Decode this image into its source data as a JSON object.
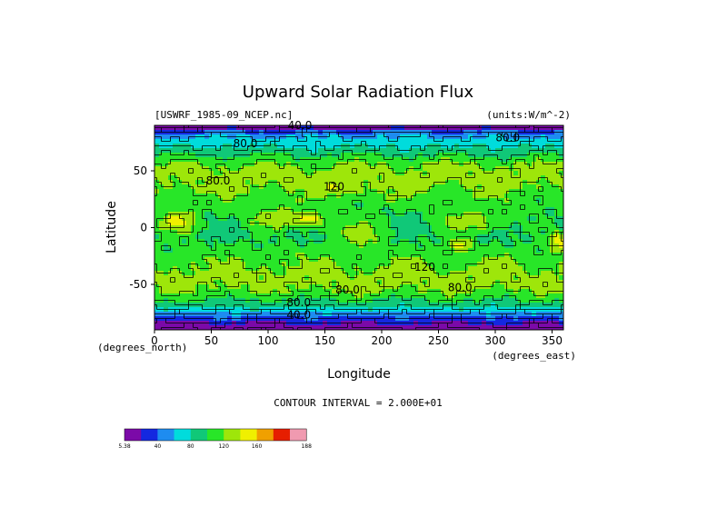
{
  "chart_data": {
    "type": "heatmap",
    "title": "Upward Solar Radiation Flux",
    "subtitle_left": "[USWRF_1985-09_NCEP.nc]",
    "subtitle_right": "(units:W/m^-2)",
    "xlabel": "Longitude",
    "ylabel": "Latitude",
    "x_unit_label": "(degrees_east)",
    "y_unit_label": "(degrees_north)",
    "xlim": [
      0,
      360
    ],
    "ylim": [
      -90,
      90
    ],
    "x_ticks": [
      0,
      50,
      100,
      150,
      200,
      250,
      300,
      350
    ],
    "y_ticks": [
      -50,
      0,
      50
    ],
    "contour_interval_text": "CONTOUR INTERVAL = 2.000E+01",
    "contour_labels": [
      {
        "text": "40.0",
        "lon": 128,
        "lat": 87
      },
      {
        "text": "80.0",
        "lon": 80,
        "lat": 71
      },
      {
        "text": "80.0",
        "lon": 311,
        "lat": 76
      },
      {
        "text": "80.0",
        "lon": 56,
        "lat": 38
      },
      {
        "text": "120",
        "lon": 158,
        "lat": 33
      },
      {
        "text": "120",
        "lon": 238,
        "lat": -38
      },
      {
        "text": "80.0",
        "lon": 170,
        "lat": -58
      },
      {
        "text": "80.0",
        "lon": 269,
        "lat": -56
      },
      {
        "text": "80.0",
        "lon": 127,
        "lat": -69
      },
      {
        "text": "40.0",
        "lon": 127,
        "lat": -80
      }
    ],
    "colorbar": {
      "levels": [
        "5.38",
        "40",
        "80",
        "120",
        "160",
        "188"
      ],
      "colors": [
        "#7b0aa8",
        "#1428e0",
        "#1e8cf0",
        "#00dcdc",
        "#10c878",
        "#28e628",
        "#9ee60a",
        "#f0f000",
        "#f0a000",
        "#e61e00",
        "#f09ab0"
      ]
    },
    "grid": false
  }
}
